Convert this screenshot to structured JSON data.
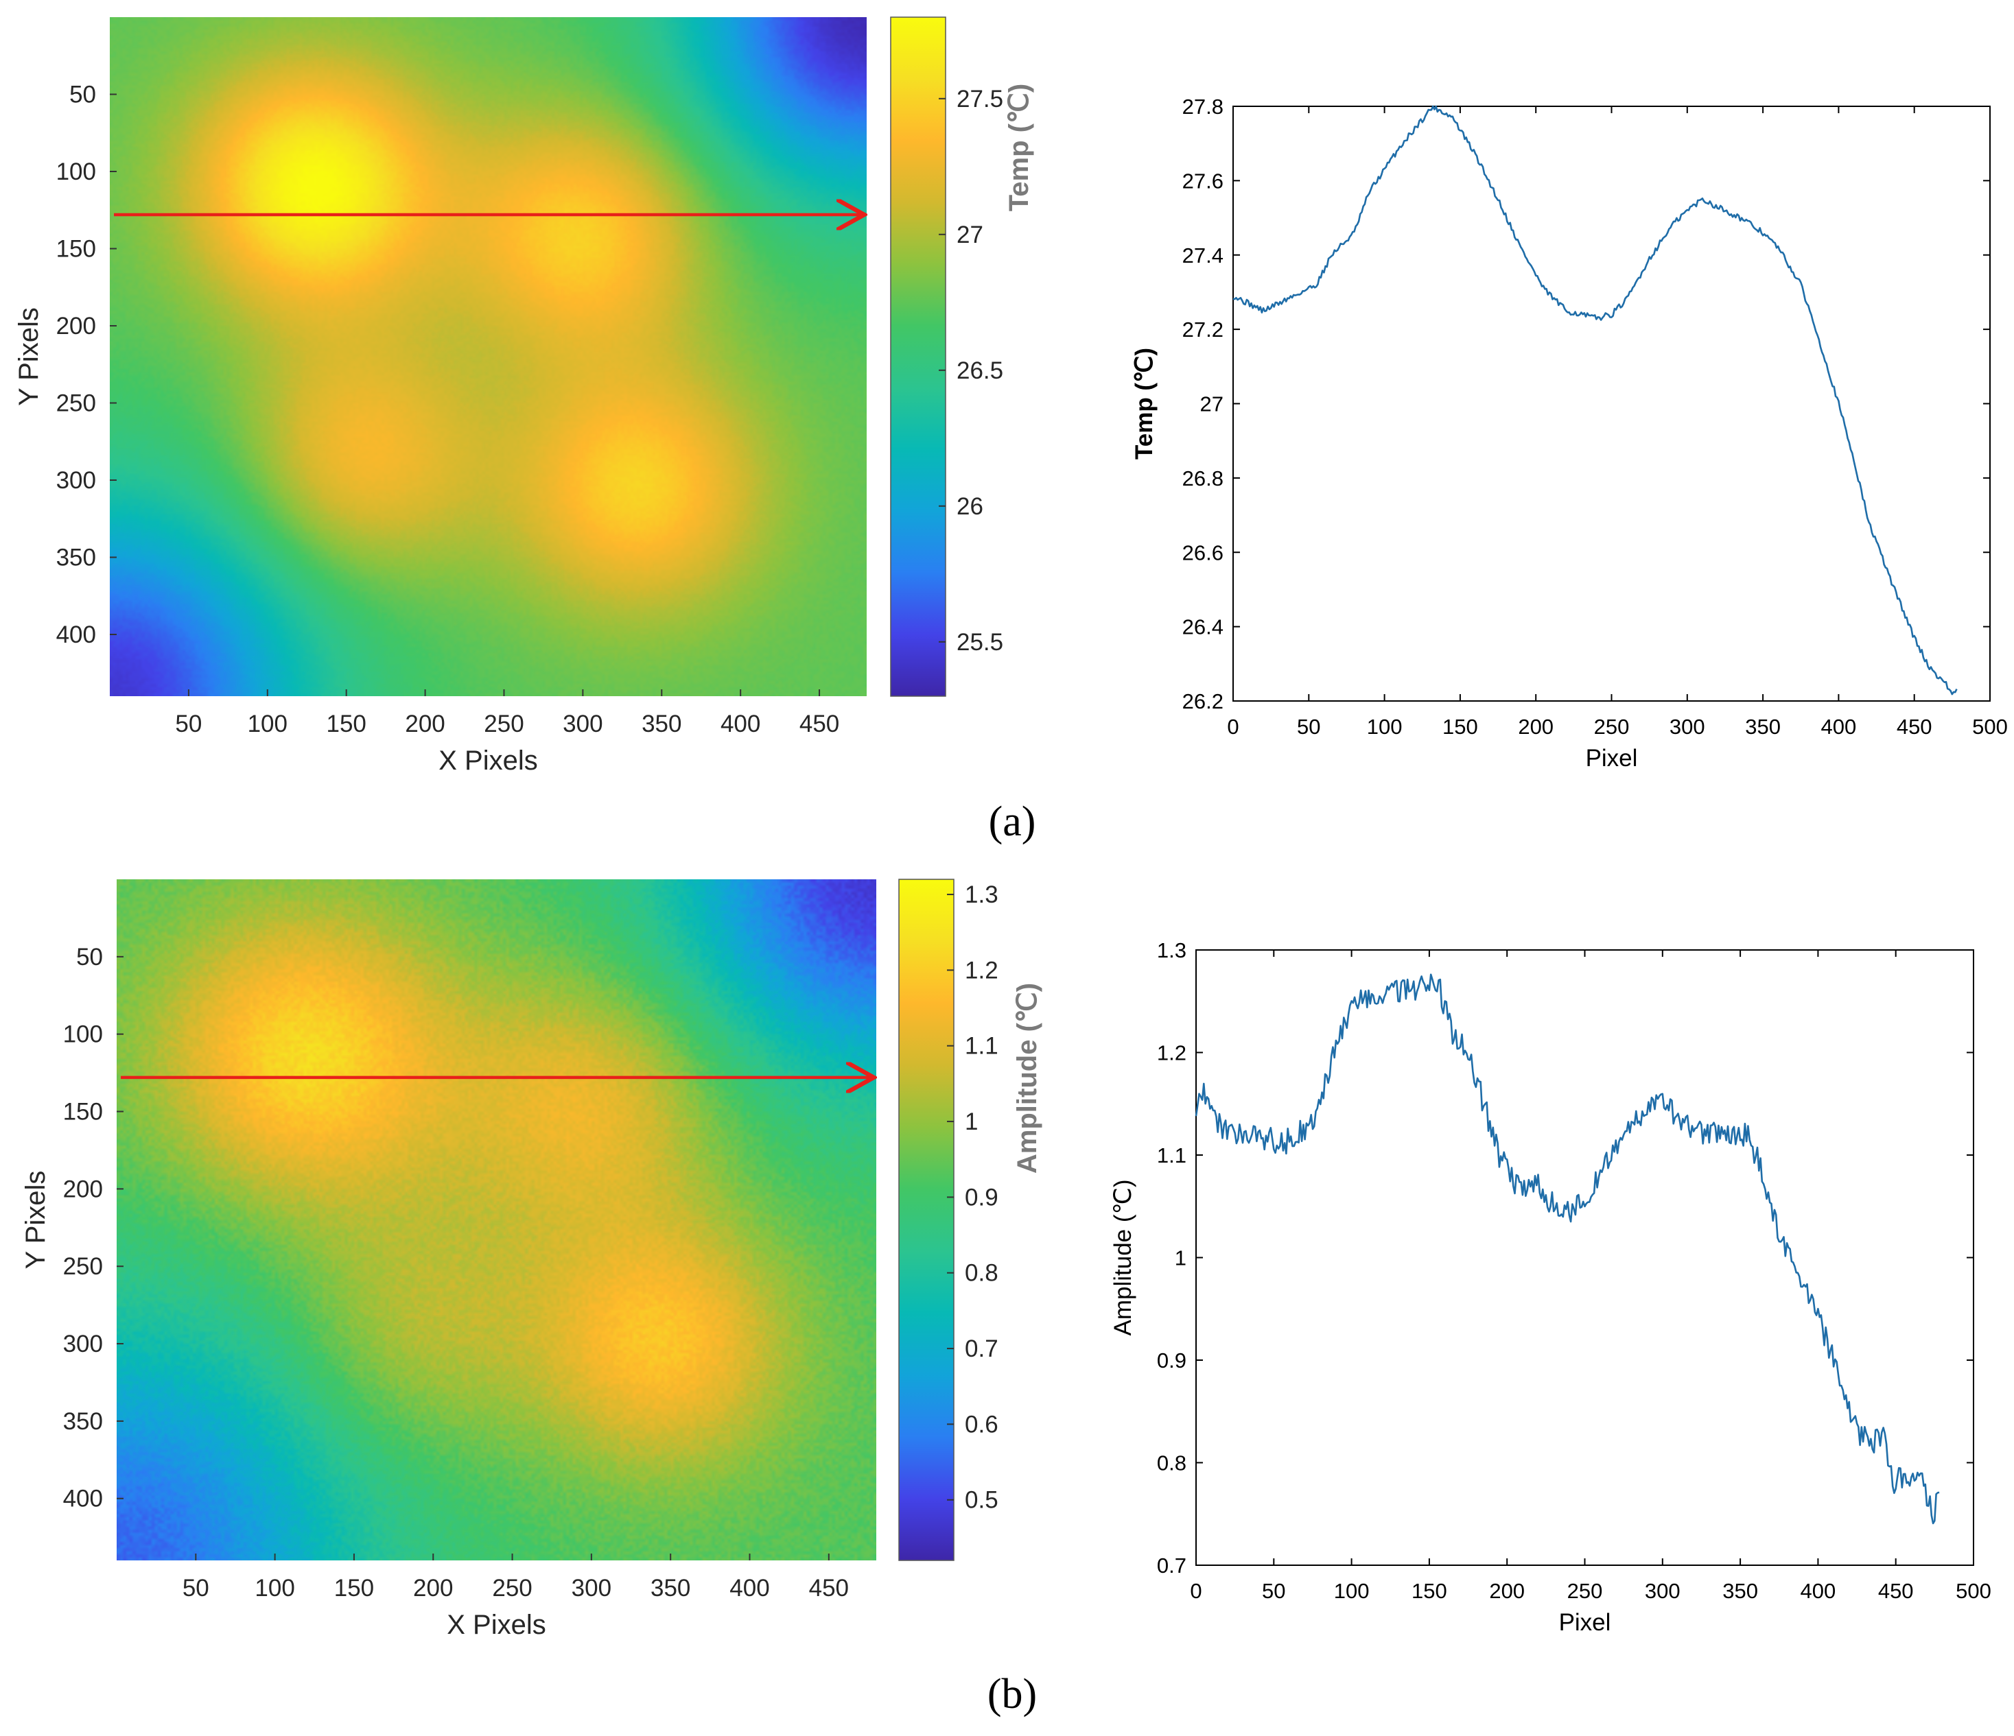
{
  "panels": [
    {
      "label": "(a)",
      "heatmap": {
        "xlabel": "X Pixels",
        "ylabel": "Y Pixels",
        "xticks": [
          50,
          100,
          150,
          200,
          250,
          300,
          350,
          400,
          450
        ],
        "yticks": [
          50,
          100,
          150,
          200,
          250,
          300,
          350,
          400
        ],
        "xlim": [
          0,
          480
        ],
        "ylim": [
          0,
          440
        ],
        "colorbar_label": "Temp (℃)",
        "colorbar_ticks": [
          25.5,
          26,
          26.5,
          27,
          27.5
        ],
        "colorbar_range": [
          25.3,
          27.8
        ],
        "background_value": 26.75,
        "hotspots": [
          {
            "x": 130,
            "y": 110,
            "sigma": 55,
            "value": 1.05
          },
          {
            "x": 300,
            "y": 140,
            "sigma": 55,
            "value": 0.75
          },
          {
            "x": 160,
            "y": 285,
            "sigma": 55,
            "value": 0.6
          },
          {
            "x": 335,
            "y": 305,
            "sigma": 55,
            "value": 0.75
          }
        ],
        "cold_corners": [
          {
            "x": 0,
            "y": 440,
            "sigma": 90,
            "value": -1.3
          },
          {
            "x": 480,
            "y": 0,
            "sigma": 80,
            "value": -1.4
          }
        ],
        "profile_line_y": 128
      },
      "profile": {
        "xlabel": "Pixel",
        "ylabel": "Temp (℃)",
        "xlim": [
          0,
          500
        ],
        "ylim": [
          26.2,
          27.8
        ],
        "xticks": [
          0,
          50,
          100,
          150,
          200,
          250,
          300,
          350,
          400,
          450,
          500
        ],
        "yticks": [
          26.2,
          26.4,
          26.6,
          26.8,
          27,
          27.2,
          27.4,
          27.6,
          27.8
        ],
        "ytick_labels": [
          "26.2",
          "26.4",
          "26.6",
          "26.8",
          "27",
          "27.2",
          "27.4",
          "27.6",
          "27.8"
        ],
        "noise": 0.008,
        "anchors": [
          [
            0,
            27.29
          ],
          [
            10,
            27.27
          ],
          [
            20,
            27.25
          ],
          [
            30,
            27.27
          ],
          [
            40,
            27.29
          ],
          [
            55,
            27.32
          ],
          [
            65,
            27.4
          ],
          [
            80,
            27.46
          ],
          [
            90,
            27.57
          ],
          [
            100,
            27.63
          ],
          [
            110,
            27.69
          ],
          [
            120,
            27.74
          ],
          [
            132,
            27.8
          ],
          [
            145,
            27.77
          ],
          [
            160,
            27.67
          ],
          [
            175,
            27.55
          ],
          [
            190,
            27.42
          ],
          [
            205,
            27.31
          ],
          [
            220,
            27.25
          ],
          [
            240,
            27.23
          ],
          [
            250,
            27.24
          ],
          [
            260,
            27.28
          ],
          [
            275,
            27.39
          ],
          [
            290,
            27.48
          ],
          [
            300,
            27.52
          ],
          [
            310,
            27.55
          ],
          [
            320,
            27.53
          ],
          [
            335,
            27.5
          ],
          [
            350,
            27.46
          ],
          [
            360,
            27.42
          ],
          [
            375,
            27.32
          ],
          [
            385,
            27.2
          ],
          [
            400,
            27.0
          ],
          [
            410,
            26.85
          ],
          [
            420,
            26.68
          ],
          [
            435,
            26.52
          ],
          [
            450,
            26.37
          ],
          [
            460,
            26.29
          ],
          [
            470,
            26.25
          ],
          [
            475,
            26.22
          ],
          [
            478,
            26.23
          ]
        ]
      }
    },
    {
      "label": "(b)",
      "heatmap": {
        "xlabel": "X Pixels",
        "ylabel": "Y Pixels",
        "xticks": [
          50,
          100,
          150,
          200,
          250,
          300,
          350,
          400,
          450
        ],
        "yticks": [
          50,
          100,
          150,
          200,
          250,
          300,
          350,
          400
        ],
        "xlim": [
          0,
          480
        ],
        "ylim": [
          0,
          440
        ],
        "colorbar_label": "Amplitude (℃)",
        "colorbar_ticks": [
          0.5,
          0.6,
          0.7,
          0.8,
          0.9,
          1,
          1.1,
          1.2,
          1.3
        ],
        "colorbar_range": [
          0.42,
          1.32
        ],
        "background_value": 0.93,
        "hotspots": [
          {
            "x": 120,
            "y": 115,
            "sigma": 65,
            "value": 0.3
          },
          {
            "x": 300,
            "y": 145,
            "sigma": 60,
            "value": 0.2
          },
          {
            "x": 190,
            "y": 290,
            "sigma": 60,
            "value": 0.13
          },
          {
            "x": 345,
            "y": 300,
            "sigma": 55,
            "value": 0.25
          }
        ],
        "cold_corners": [
          {
            "x": 0,
            "y": 440,
            "sigma": 110,
            "value": -0.38
          },
          {
            "x": 480,
            "y": 0,
            "sigma": 90,
            "value": -0.45
          }
        ],
        "profile_line_y": 128
      },
      "profile": {
        "xlabel": "Pixel",
        "ylabel": "Amplitude (℃)",
        "xlim": [
          0,
          500
        ],
        "ylim": [
          0.7,
          1.3
        ],
        "xticks": [
          0,
          50,
          100,
          150,
          200,
          250,
          300,
          350,
          400,
          450,
          500
        ],
        "yticks": [
          0.7,
          0.8,
          0.9,
          1,
          1.1,
          1.2,
          1.3
        ],
        "ytick_labels": [
          "0.7",
          "0.8",
          "0.9",
          "1",
          "1.1",
          "1.2",
          "1.3"
        ],
        "noise": 0.012,
        "anchors": [
          [
            0,
            1.15
          ],
          [
            5,
            1.16
          ],
          [
            15,
            1.13
          ],
          [
            25,
            1.12
          ],
          [
            40,
            1.12
          ],
          [
            55,
            1.11
          ],
          [
            65,
            1.12
          ],
          [
            75,
            1.13
          ],
          [
            85,
            1.18
          ],
          [
            95,
            1.23
          ],
          [
            105,
            1.25
          ],
          [
            120,
            1.26
          ],
          [
            140,
            1.26
          ],
          [
            155,
            1.27
          ],
          [
            165,
            1.22
          ],
          [
            175,
            1.2
          ],
          [
            185,
            1.15
          ],
          [
            195,
            1.1
          ],
          [
            205,
            1.07
          ],
          [
            220,
            1.07
          ],
          [
            235,
            1.04
          ],
          [
            245,
            1.05
          ],
          [
            255,
            1.07
          ],
          [
            270,
            1.11
          ],
          [
            285,
            1.14
          ],
          [
            300,
            1.15
          ],
          [
            315,
            1.13
          ],
          [
            330,
            1.12
          ],
          [
            345,
            1.12
          ],
          [
            355,
            1.12
          ],
          [
            365,
            1.08
          ],
          [
            375,
            1.02
          ],
          [
            385,
            0.99
          ],
          [
            395,
            0.96
          ],
          [
            405,
            0.92
          ],
          [
            415,
            0.88
          ],
          [
            425,
            0.83
          ],
          [
            435,
            0.82
          ],
          [
            442,
            0.83
          ],
          [
            448,
            0.78
          ],
          [
            460,
            0.79
          ],
          [
            468,
            0.78
          ],
          [
            474,
            0.75
          ],
          [
            478,
            0.77
          ]
        ]
      }
    }
  ],
  "chart_data": [
    {
      "type": "heatmap",
      "title": "",
      "xlabel": "X Pixels",
      "ylabel": "Y Pixels",
      "xlim": [
        0,
        480
      ],
      "ylim": [
        0,
        440
      ],
      "colorbar_label": "Temp (℃)",
      "colorbar_range": [
        25.3,
        27.8
      ],
      "line_profile_y": 128
    },
    {
      "type": "line",
      "title": "",
      "xlabel": "Pixel",
      "ylabel": "Temp (℃)",
      "xlim": [
        0,
        500
      ],
      "ylim": [
        26.2,
        27.8
      ]
    },
    {
      "type": "heatmap",
      "title": "",
      "xlabel": "X Pixels",
      "ylabel": "Y Pixels",
      "xlim": [
        0,
        480
      ],
      "ylim": [
        0,
        440
      ],
      "colorbar_label": "Amplitude (℃)",
      "colorbar_range": [
        0.42,
        1.32
      ],
      "line_profile_y": 128
    },
    {
      "type": "line",
      "title": "",
      "xlabel": "Pixel",
      "ylabel": "Amplitude (℃)",
      "xlim": [
        0,
        500
      ],
      "ylim": [
        0.7,
        1.3
      ]
    }
  ],
  "colors": {
    "profile_line": "#1f6da8",
    "arrow": "#e8201a",
    "axis": "#000000",
    "heat_tick_text": "#262626",
    "colormap": [
      "#3e26a8",
      "#4343e8",
      "#2a7ff2",
      "#12a4d9",
      "#08b9b5",
      "#2cc48f",
      "#42c665",
      "#8dc33f",
      "#d2b92f",
      "#feb82c",
      "#f6df23",
      "#f9fb0e"
    ]
  }
}
